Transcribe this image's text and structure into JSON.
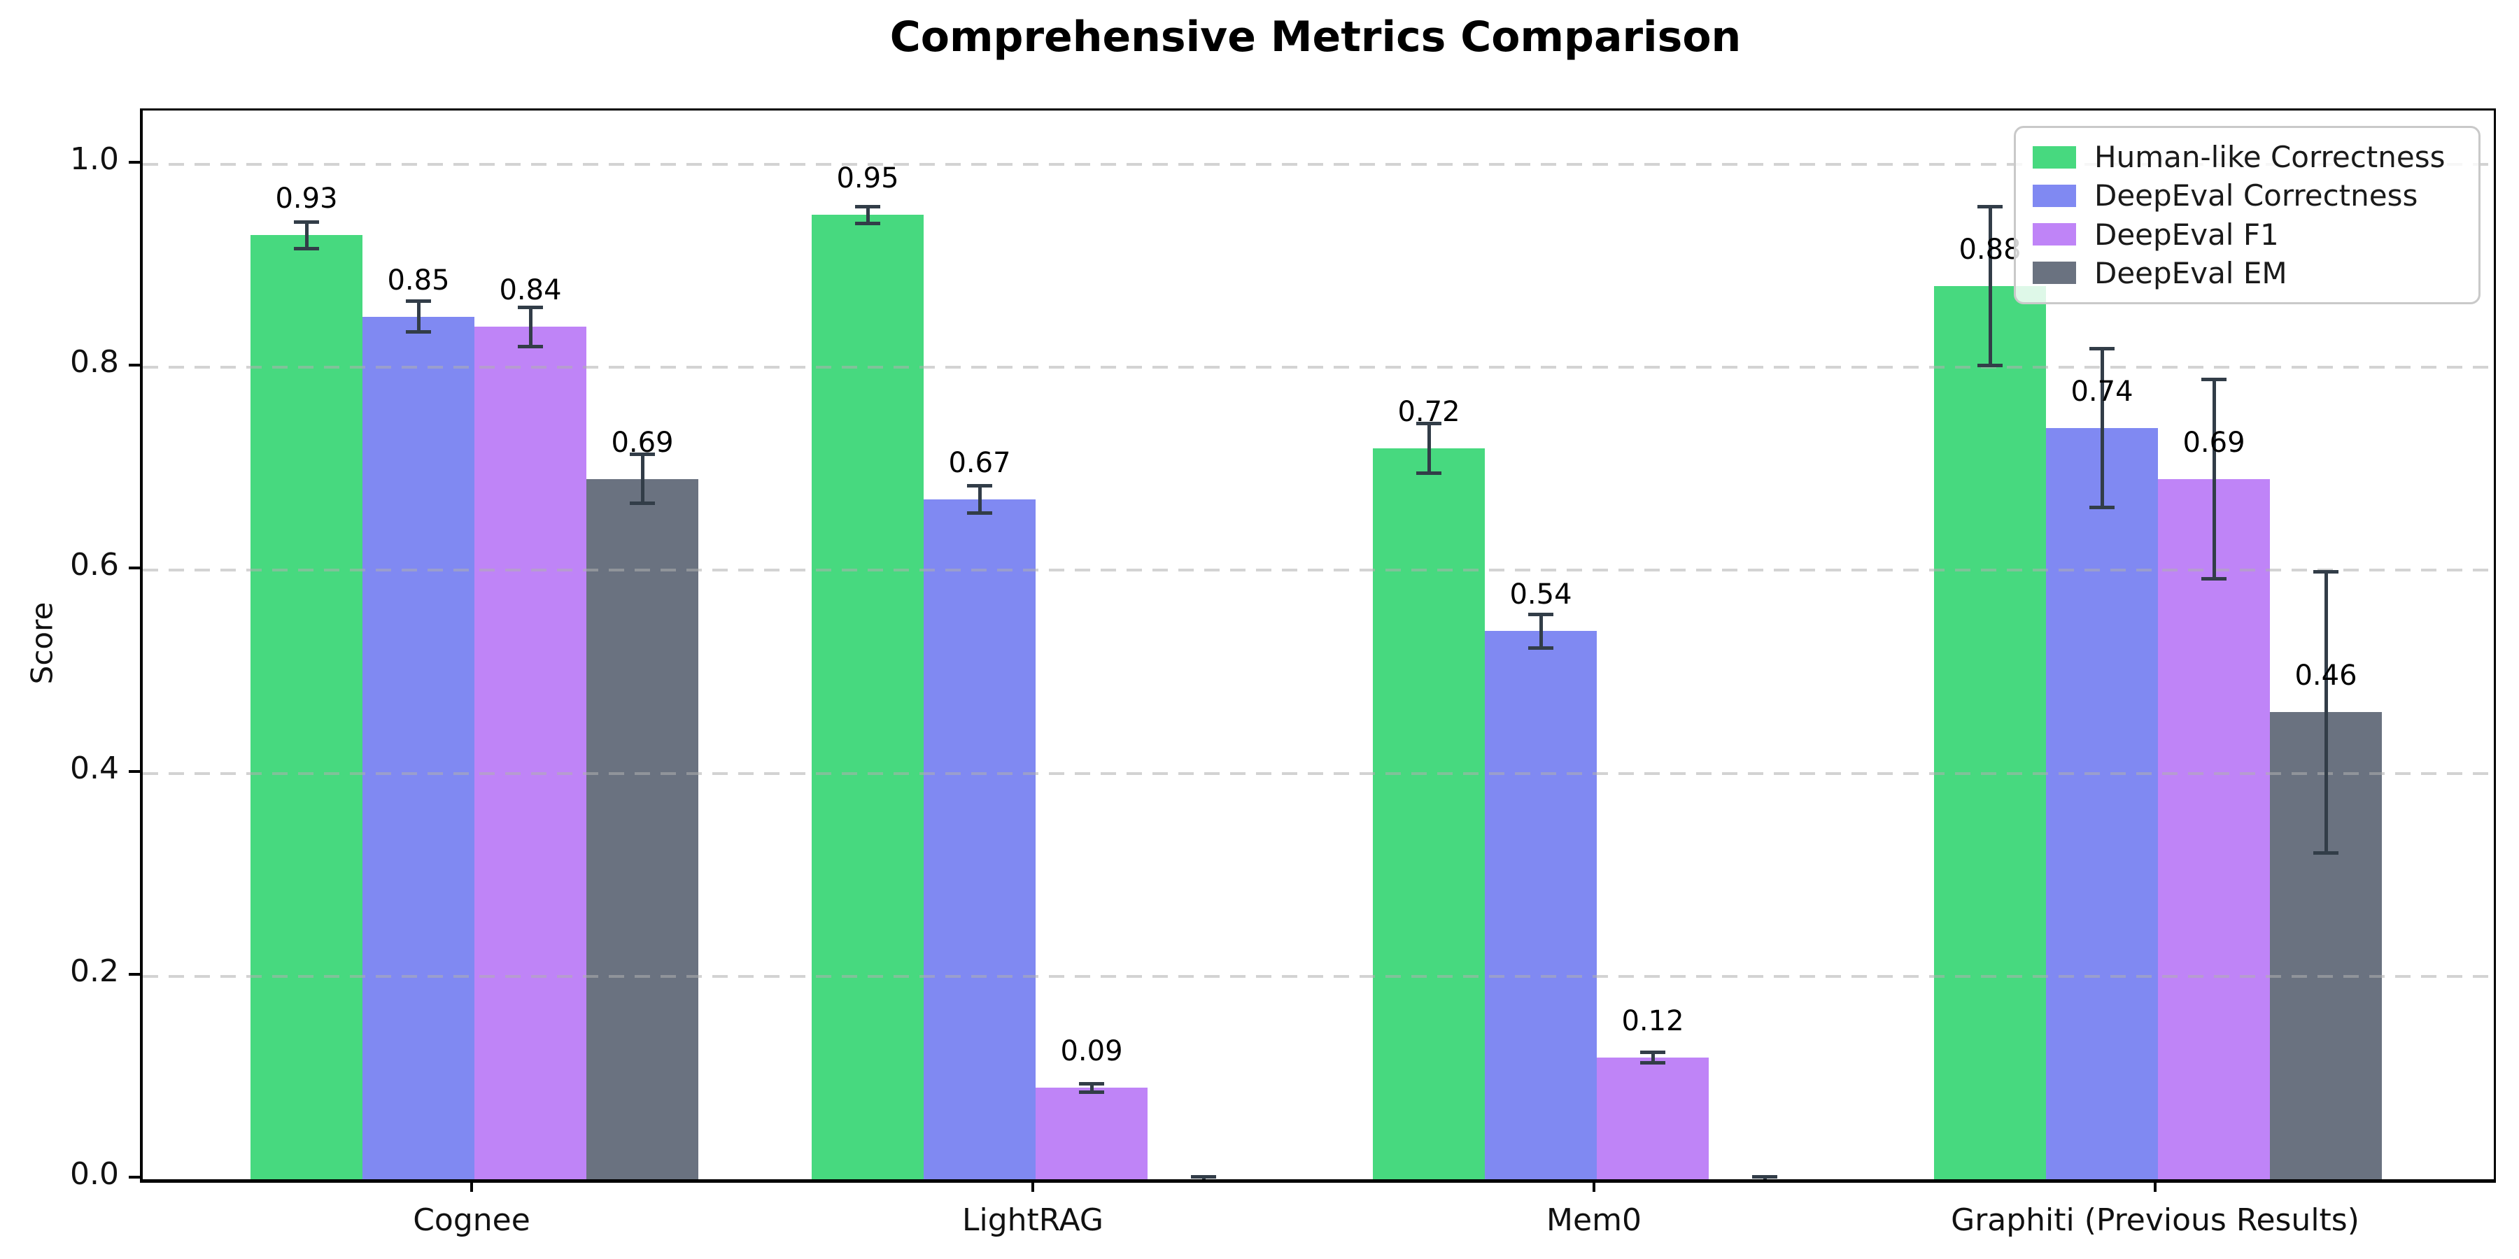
{
  "title": "Comprehensive Metrics Comparison",
  "chart_data": {
    "type": "bar",
    "title": "Comprehensive Metrics Comparison",
    "xlabel": "",
    "ylabel": "Score",
    "ylim": [
      0,
      1.053
    ],
    "yticks": [
      "0.0",
      "0.2",
      "0.4",
      "0.6",
      "0.8",
      "1.0"
    ],
    "grid": {
      "axis": "y",
      "linestyle": "dashed",
      "color": "#d9d9d9"
    },
    "legend_position": "upper right",
    "error_bar_color": "#323d48",
    "categories": [
      "Cognee",
      "LightRAG",
      "Mem0",
      "Graphiti (Previous Results)"
    ],
    "series": [
      {
        "name": "Human-like Correctness",
        "color": "#47d97f",
        "values": [
          0.93,
          0.95,
          0.72,
          0.88
        ],
        "errors": [
          0.015,
          0.01,
          0.026,
          0.08
        ],
        "labels": [
          "0.93",
          "0.95",
          "0.72",
          "0.88"
        ]
      },
      {
        "name": "DeepEval Correctness",
        "color": "#8089f2",
        "values": [
          0.85,
          0.67,
          0.54,
          0.74
        ],
        "errors": [
          0.017,
          0.015,
          0.018,
          0.08
        ],
        "labels": [
          "0.85",
          "0.67",
          "0.54",
          "0.74"
        ]
      },
      {
        "name": "DeepEval F1",
        "color": "#bf84f7",
        "values": [
          0.84,
          0.09,
          0.12,
          0.69
        ],
        "errors": [
          0.021,
          0.006,
          0.007,
          0.1
        ],
        "labels": [
          "0.84",
          "0.09",
          "0.12",
          "0.69"
        ]
      },
      {
        "name": "DeepEval EM",
        "color": "#6a7280",
        "values": [
          0.69,
          0.0,
          0.0,
          0.46
        ],
        "errors": [
          0.026,
          0.004,
          0.004,
          0.14
        ],
        "labels": [
          "0.69",
          "",
          "",
          "0.46"
        ]
      }
    ]
  }
}
